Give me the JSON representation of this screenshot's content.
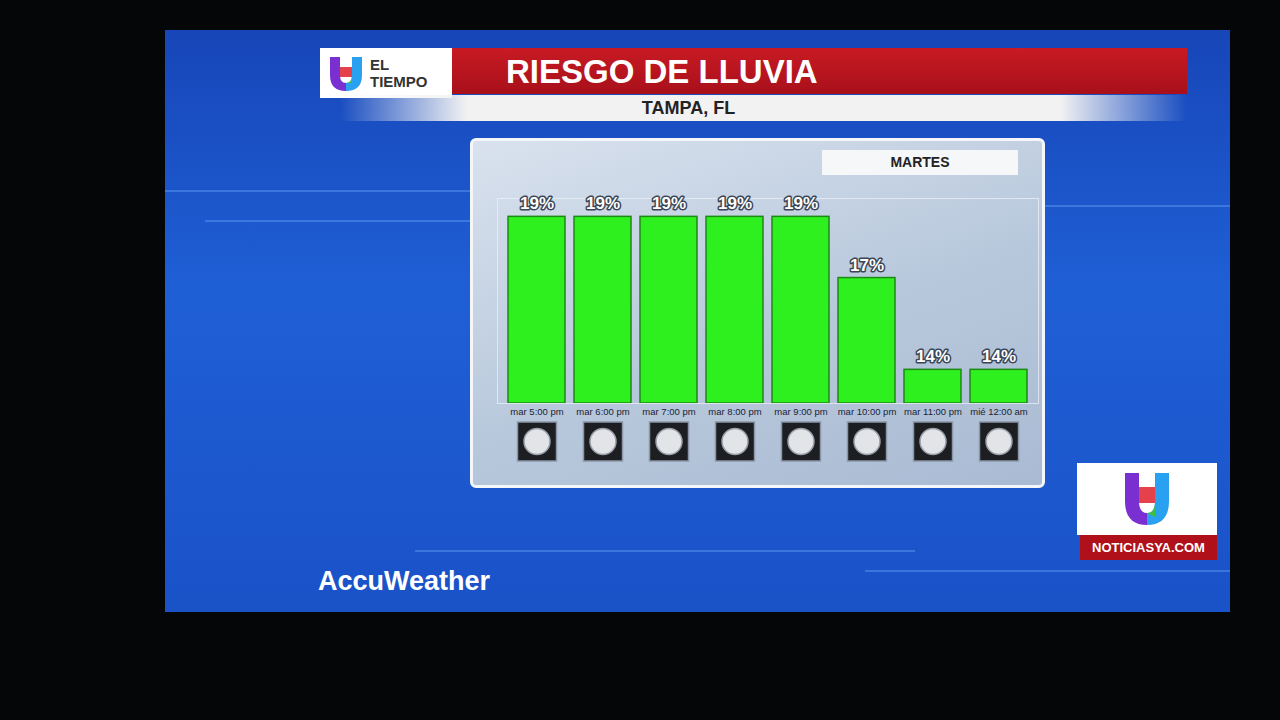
{
  "chart_data": {
    "type": "bar",
    "title": "RIESGO DE LLUVIA",
    "subtitle": "TAMPA, FL",
    "annotations": [
      "MARTES"
    ],
    "categories": [
      "mar 5:00 pm",
      "mar 6:00 pm",
      "mar 7:00 pm",
      "mar 8:00 pm",
      "mar 9:00 pm",
      "mar 10:00 pm",
      "mar 11:00 pm",
      "mié 12:00 am"
    ],
    "values": [
      19,
      19,
      19,
      19,
      19,
      17,
      14,
      14
    ],
    "value_labels": [
      "19%",
      "19%",
      "19%",
      "19%",
      "19%",
      "17%",
      "14%",
      "14%"
    ],
    "color": "#2ef01e",
    "ylim": [
      12.9,
      19.6
    ],
    "yticks": [],
    "tick_labels": "x",
    "data_labels": true,
    "grid": false
  },
  "page": {
    "brand": "EL TIEMPO",
    "website": "NOTICIASYA.COM",
    "sponsor": "AccuWeather"
  }
}
